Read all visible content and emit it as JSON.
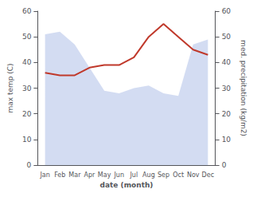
{
  "chart_data": {
    "type": "line",
    "xlabel": "date (month)",
    "ylabel": "max temp (C)",
    "y2label": "med. precipitation (kg/m2)",
    "categories": [
      "Jan",
      "Feb",
      "Mar",
      "Apr",
      "May",
      "Jun",
      "Jul",
      "Aug",
      "Sep",
      "Oct",
      "Nov",
      "Dec"
    ],
    "series": [
      {
        "type": "line",
        "color": "#c0392b",
        "values": [
          36,
          35,
          35,
          38,
          39,
          39,
          42,
          50,
          55,
          50,
          45,
          43
        ]
      },
      {
        "type": "area",
        "color": "#afc0e8",
        "axis": "y2",
        "values": [
          51,
          52,
          47,
          38,
          29,
          28,
          30,
          31,
          28,
          27,
          47,
          49
        ]
      }
    ],
    "ylim": [
      0,
      60
    ],
    "yticks": [
      0,
      10,
      20,
      30,
      40,
      50,
      60
    ],
    "y2lim": [
      0,
      60
    ],
    "y2ticks": [
      0,
      10,
      20,
      30,
      40,
      50,
      60
    ],
    "grid": false
  }
}
